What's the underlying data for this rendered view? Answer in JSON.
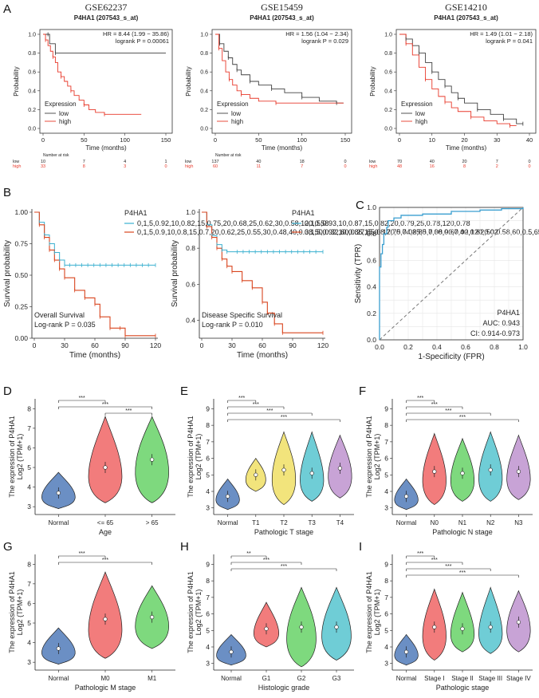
{
  "colors": {
    "low": "#404040",
    "high": "#e8392a",
    "blue_low": "#3ab0d0",
    "red_high": "#d9451f",
    "roc": "#3a9fd0",
    "normal": "#6b8fc4",
    "v_red": "#f27c7c",
    "v_green": "#7ed97e",
    "v_yellow": "#f2e47c",
    "v_cyan": "#6fcdd6",
    "v_purple": "#c8a3d6"
  },
  "panels": {
    "A": "A",
    "B": "B",
    "C": "C",
    "D": "D",
    "E": "E",
    "F": "F",
    "G": "G",
    "H": "H",
    "I": "I"
  },
  "km_a": [
    {
      "title": "GSE62237",
      "subtitle": "P4HA1 (207543_s_at)",
      "hr": "HR = 8.44 (1.99 − 35.86)",
      "logrank": "logrank P = 0.00061",
      "xticks": [
        "0",
        "50",
        "100",
        "150"
      ],
      "xmax": 150,
      "risk": {
        "label": "Number at risk",
        "low": [
          "10",
          "7",
          "4",
          "1"
        ],
        "high": [
          "33",
          "8",
          "3",
          "0"
        ]
      },
      "low": [
        [
          0,
          1
        ],
        [
          6,
          1
        ],
        [
          8,
          0.9
        ],
        [
          15,
          0.8
        ],
        [
          150,
          0.8
        ]
      ],
      "high": [
        [
          0,
          1
        ],
        [
          3,
          0.94
        ],
        [
          6,
          0.88
        ],
        [
          9,
          0.82
        ],
        [
          12,
          0.76
        ],
        [
          15,
          0.7
        ],
        [
          18,
          0.6
        ],
        [
          22,
          0.55
        ],
        [
          26,
          0.5
        ],
        [
          30,
          0.45
        ],
        [
          34,
          0.4
        ],
        [
          38,
          0.35
        ],
        [
          44,
          0.3
        ],
        [
          50,
          0.25
        ],
        [
          56,
          0.2
        ],
        [
          64,
          0.17
        ],
        [
          75,
          0.15
        ],
        [
          120,
          0.15
        ]
      ],
      "legend_pos": "bottom-left"
    },
    {
      "title": "GSE15459",
      "subtitle": "P4HA1 (207543_s_at)",
      "hr": "HR = 1.56 (1.04 − 2.34)",
      "logrank": "logrank P = 0.029",
      "xticks": [
        "0",
        "50",
        "100",
        "150"
      ],
      "xmax": 150,
      "risk": {
        "label": "Number at risk",
        "low": [
          "137",
          "40",
          "18",
          "0"
        ],
        "high": [
          "60",
          "11",
          "7",
          "0"
        ]
      },
      "low": [
        [
          0,
          1
        ],
        [
          5,
          0.9
        ],
        [
          10,
          0.82
        ],
        [
          15,
          0.75
        ],
        [
          20,
          0.68
        ],
        [
          25,
          0.62
        ],
        [
          30,
          0.57
        ],
        [
          40,
          0.5
        ],
        [
          50,
          0.46
        ],
        [
          65,
          0.42
        ],
        [
          80,
          0.38
        ],
        [
          100,
          0.33
        ],
        [
          120,
          0.29
        ],
        [
          140,
          0.27
        ],
        [
          148,
          0.27
        ]
      ],
      "high": [
        [
          0,
          1
        ],
        [
          4,
          0.85
        ],
        [
          8,
          0.72
        ],
        [
          12,
          0.6
        ],
        [
          16,
          0.52
        ],
        [
          20,
          0.46
        ],
        [
          25,
          0.4
        ],
        [
          30,
          0.36
        ],
        [
          40,
          0.32
        ],
        [
          50,
          0.29
        ],
        [
          70,
          0.27
        ],
        [
          148,
          0.27
        ]
      ],
      "legend_pos": "bottom-left"
    },
    {
      "title": "GSE14210",
      "subtitle": "P4HA1 (207543_s_at)",
      "hr": "HR = 1.49 (1.01 − 2.18)",
      "logrank": "logrank P = 0.041",
      "xticks": [
        "0",
        "10",
        "20",
        "30",
        "40"
      ],
      "xmax": 40,
      "risk": {
        "label": "",
        "low": [
          "70",
          "40",
          "20",
          "7",
          "0"
        ],
        "high": [
          "48",
          "16",
          "8",
          "2",
          "0"
        ]
      },
      "low": [
        [
          0,
          1
        ],
        [
          2,
          0.95
        ],
        [
          4,
          0.88
        ],
        [
          6,
          0.8
        ],
        [
          8,
          0.7
        ],
        [
          10,
          0.6
        ],
        [
          12,
          0.52
        ],
        [
          14,
          0.45
        ],
        [
          16,
          0.38
        ],
        [
          18,
          0.32
        ],
        [
          20,
          0.27
        ],
        [
          24,
          0.2
        ],
        [
          28,
          0.15
        ],
        [
          32,
          0.1
        ],
        [
          36,
          0.05
        ],
        [
          38,
          0.05
        ]
      ],
      "high": [
        [
          0,
          1
        ],
        [
          2,
          0.9
        ],
        [
          4,
          0.78
        ],
        [
          6,
          0.65
        ],
        [
          8,
          0.52
        ],
        [
          10,
          0.42
        ],
        [
          12,
          0.34
        ],
        [
          14,
          0.28
        ],
        [
          16,
          0.22
        ],
        [
          18,
          0.18
        ],
        [
          22,
          0.12
        ],
        [
          26,
          0.08
        ],
        [
          30,
          0.05
        ],
        [
          34,
          0.03
        ],
        [
          36,
          0.03
        ]
      ],
      "legend_pos": "bottom-left"
    }
  ],
  "km_labels": {
    "ylabel": "Probability",
    "xlabel": "Time (months)",
    "legend_title": "Expression",
    "low": "low",
    "high": "high",
    "yticks": [
      "0.0",
      "0.2",
      "0.4",
      "0.6",
      "0.8",
      "1.0"
    ]
  },
  "km_b": [
    {
      "ylabel": "Survival probability",
      "xlabel": "Time (months)",
      "yticks": [
        "0.00",
        "0.25",
        "0.50",
        "0.75",
        "1.00"
      ],
      "ymin": 0,
      "xticks": [
        "0",
        "30",
        "60",
        "90",
        "120"
      ],
      "legend_title": "P4HA1",
      "low": [
        [
          0,
          1
        ],
        [
          5,
          0.92
        ],
        [
          10,
          0.82
        ],
        [
          15,
          0.75
        ],
        [
          20,
          0.68
        ],
        [
          25,
          0.62
        ],
        [
          30,
          0.58
        ],
        [
          120,
          0.58
        ]
      ],
      "high": [
        [
          0,
          1
        ],
        [
          5,
          0.9
        ],
        [
          10,
          0.8
        ],
        [
          15,
          0.7
        ],
        [
          20,
          0.62
        ],
        [
          25,
          0.55
        ],
        [
          30,
          0.48
        ],
        [
          40,
          0.38
        ],
        [
          50,
          0.32
        ],
        [
          60,
          0.27
        ],
        [
          65,
          0.17
        ],
        [
          75,
          0.08
        ],
        [
          85,
          0.08
        ],
        [
          90,
          0.02
        ],
        [
          120,
          0.02
        ]
      ],
      "note": "Overall Survival",
      "pval": "Log-rank P = 0.035"
    },
    {
      "ylabel": "Survival probability",
      "xlabel": "Time (months)",
      "yticks": [
        "0.4",
        "0.6",
        "0.8",
        "1.0"
      ],
      "ymin": 0.3,
      "xticks": [
        "0",
        "30",
        "60",
        "90",
        "120"
      ],
      "legend_title": "P4HA1",
      "low": [
        [
          0,
          1
        ],
        [
          5,
          0.93
        ],
        [
          10,
          0.87
        ],
        [
          15,
          0.82
        ],
        [
          20,
          0.79
        ],
        [
          25,
          0.78
        ],
        [
          120,
          0.78
        ]
      ],
      "high": [
        [
          0,
          1
        ],
        [
          5,
          0.92
        ],
        [
          10,
          0.86
        ],
        [
          15,
          0.8
        ],
        [
          20,
          0.74
        ],
        [
          25,
          0.7
        ],
        [
          30,
          0.67
        ],
        [
          40,
          0.62
        ],
        [
          50,
          0.58
        ],
        [
          60,
          0.5
        ],
        [
          65,
          0.44
        ],
        [
          72,
          0.38
        ],
        [
          80,
          0.33
        ],
        [
          120,
          0.33
        ]
      ],
      "note": "Disease Specific Survival",
      "pval": "Log-rank P = 0.010"
    }
  ],
  "roc": {
    "ylabel": "Sensitivity (TPR)",
    "xlabel": "1-Specificity (FPR)",
    "ticks": [
      "0.0",
      "0.2",
      "0.4",
      "0.6",
      "0.8",
      "1.0"
    ],
    "title": "P4HA1",
    "auc": "AUC: 0.943",
    "ci": "CI: 0.914-0.973",
    "points": [
      [
        0,
        0
      ],
      [
        0,
        0.55
      ],
      [
        0.01,
        0.65
      ],
      [
        0.02,
        0.72
      ],
      [
        0.03,
        0.8
      ],
      [
        0.05,
        0.85
      ],
      [
        0.06,
        0.9
      ],
      [
        0.1,
        0.92
      ],
      [
        0.15,
        0.94
      ],
      [
        0.3,
        0.95
      ],
      [
        0.5,
        0.97
      ],
      [
        0.7,
        0.98
      ],
      [
        0.85,
        0.99
      ],
      [
        1,
        1
      ]
    ]
  },
  "chart_data": [
    {
      "type": "violin",
      "panel": "D",
      "ylabel": "The expression of P4HA1",
      "ylabel2": "Log2 (TPM+1)",
      "xlabel": "Age",
      "yticks": [
        "3",
        "4",
        "5",
        "6",
        "7",
        "8"
      ],
      "ylim": [
        2.6,
        8.5
      ],
      "groups": [
        {
          "label": "Normal",
          "median": 3.7,
          "min": 2.9,
          "max": 4.75,
          "c": "normal"
        },
        {
          "label": "<= 65",
          "median": 5.0,
          "min": 3.2,
          "max": 7.6,
          "c": "v_red"
        },
        {
          "label": "> 65",
          "median": 5.4,
          "min": 3.2,
          "max": 7.6,
          "c": "v_green"
        }
      ],
      "sig": [
        {
          "a": 0,
          "b": 1,
          "t": "***"
        },
        {
          "a": 0,
          "b": 2,
          "t": "***"
        },
        {
          "a": 1,
          "b": 2,
          "t": "***"
        }
      ]
    },
    {
      "type": "violin",
      "panel": "E",
      "ylabel": "The expression of P4HA1",
      "ylabel2": "Log2 (TPM+1)",
      "xlabel": "Pathologic T stage",
      "yticks": [
        "3",
        "4",
        "5",
        "6",
        "7",
        "8",
        "9"
      ],
      "ylim": [
        2.6,
        9.6
      ],
      "groups": [
        {
          "label": "Normal",
          "median": 3.7,
          "min": 2.9,
          "max": 4.75,
          "c": "normal"
        },
        {
          "label": "T1",
          "median": 5.0,
          "min": 4.0,
          "max": 6.0,
          "c": "v_yellow"
        },
        {
          "label": "T2",
          "median": 5.3,
          "min": 3.2,
          "max": 7.6,
          "c": "v_yellow"
        },
        {
          "label": "T3",
          "median": 5.1,
          "min": 3.4,
          "max": 7.6,
          "c": "v_cyan"
        },
        {
          "label": "T4",
          "median": 5.4,
          "min": 3.6,
          "max": 7.4,
          "c": "v_purple"
        }
      ],
      "sig": [
        {
          "a": 0,
          "b": 1,
          "t": "***"
        },
        {
          "a": 0,
          "b": 2,
          "t": "***"
        },
        {
          "a": 0,
          "b": 3,
          "t": "***"
        },
        {
          "a": 0,
          "b": 4,
          "t": "***"
        }
      ]
    },
    {
      "type": "violin",
      "panel": "F",
      "ylabel": "The expression of P4HA1",
      "ylabel2": "Log2 (TPM+1)",
      "xlabel": "Pathologic N stage",
      "yticks": [
        "3",
        "4",
        "5",
        "6",
        "7",
        "8",
        "9"
      ],
      "ylim": [
        2.6,
        9.6
      ],
      "groups": [
        {
          "label": "Normal",
          "median": 3.7,
          "min": 2.9,
          "max": 4.75,
          "c": "normal"
        },
        {
          "label": "N0",
          "median": 5.2,
          "min": 3.2,
          "max": 7.5,
          "c": "v_red"
        },
        {
          "label": "N1",
          "median": 5.1,
          "min": 3.4,
          "max": 7.2,
          "c": "v_green"
        },
        {
          "label": "N2",
          "median": 5.3,
          "min": 3.4,
          "max": 7.6,
          "c": "v_cyan"
        },
        {
          "label": "N3",
          "median": 5.2,
          "min": 3.5,
          "max": 7.4,
          "c": "v_purple"
        }
      ],
      "sig": [
        {
          "a": 0,
          "b": 1,
          "t": "***"
        },
        {
          "a": 0,
          "b": 2,
          "t": "***"
        },
        {
          "a": 0,
          "b": 3,
          "t": "***"
        },
        {
          "a": 0,
          "b": 4,
          "t": "***"
        }
      ]
    },
    {
      "type": "violin",
      "panel": "G",
      "ylabel": "The expression of P4HA1",
      "ylabel2": "Log2 (TPM+1)",
      "xlabel": "Pathologic M stage",
      "yticks": [
        "3",
        "4",
        "5",
        "6",
        "7",
        "8"
      ],
      "ylim": [
        2.6,
        8.5
      ],
      "groups": [
        {
          "label": "Normal",
          "median": 3.7,
          "min": 2.9,
          "max": 4.75,
          "c": "normal"
        },
        {
          "label": "M0",
          "median": 5.2,
          "min": 3.2,
          "max": 7.6,
          "c": "v_red"
        },
        {
          "label": "M1",
          "median": 5.3,
          "min": 3.7,
          "max": 6.9,
          "c": "v_green"
        }
      ],
      "sig": [
        {
          "a": 0,
          "b": 1,
          "t": "***"
        },
        {
          "a": 0,
          "b": 2,
          "t": "***"
        }
      ]
    },
    {
      "type": "violin",
      "panel": "H",
      "ylabel": "The expression of P4HA1",
      "ylabel2": "Log2 (TPM+1)",
      "xlabel": "Histologic grade",
      "yticks": [
        "3",
        "4",
        "5",
        "6",
        "7",
        "8",
        "9"
      ],
      "ylim": [
        2.6,
        9.6
      ],
      "groups": [
        {
          "label": "Normal",
          "median": 3.7,
          "min": 2.9,
          "max": 4.75,
          "c": "normal"
        },
        {
          "label": "G1",
          "median": 5.1,
          "min": 4.0,
          "max": 6.7,
          "c": "v_red"
        },
        {
          "label": "G2",
          "median": 5.2,
          "min": 2.8,
          "max": 7.6,
          "c": "v_green"
        },
        {
          "label": "G3",
          "median": 5.2,
          "min": 3.2,
          "max": 7.6,
          "c": "v_cyan"
        }
      ],
      "sig": [
        {
          "a": 0,
          "b": 1,
          "t": "**"
        },
        {
          "a": 0,
          "b": 2,
          "t": "***"
        },
        {
          "a": 0,
          "b": 3,
          "t": "***"
        }
      ]
    },
    {
      "type": "violin",
      "panel": "I",
      "ylabel": "The expression of P4HA1",
      "ylabel2": "Log2 (TPM+1)",
      "xlabel": "Pathologic stage",
      "yticks": [
        "3",
        "4",
        "5",
        "6",
        "7",
        "8",
        "9"
      ],
      "ylim": [
        2.6,
        9.6
      ],
      "groups": [
        {
          "label": "Normal",
          "median": 3.7,
          "min": 2.9,
          "max": 4.75,
          "c": "normal"
        },
        {
          "label": "Stage I",
          "median": 5.2,
          "min": 3.2,
          "max": 7.5,
          "c": "v_red"
        },
        {
          "label": "Stage II",
          "median": 5.1,
          "min": 3.7,
          "max": 7.3,
          "c": "v_green"
        },
        {
          "label": "Stage III",
          "median": 5.2,
          "min": 3.6,
          "max": 7.6,
          "c": "v_cyan"
        },
        {
          "label": "Stage IV",
          "median": 5.5,
          "min": 3.7,
          "max": 7.4,
          "c": "v_purple"
        }
      ],
      "sig": [
        {
          "a": 0,
          "b": 1,
          "t": "***"
        },
        {
          "a": 0,
          "b": 2,
          "t": "***"
        },
        {
          "a": 0,
          "b": 3,
          "t": "***"
        },
        {
          "a": 0,
          "b": 4,
          "t": "***"
        }
      ]
    }
  ]
}
